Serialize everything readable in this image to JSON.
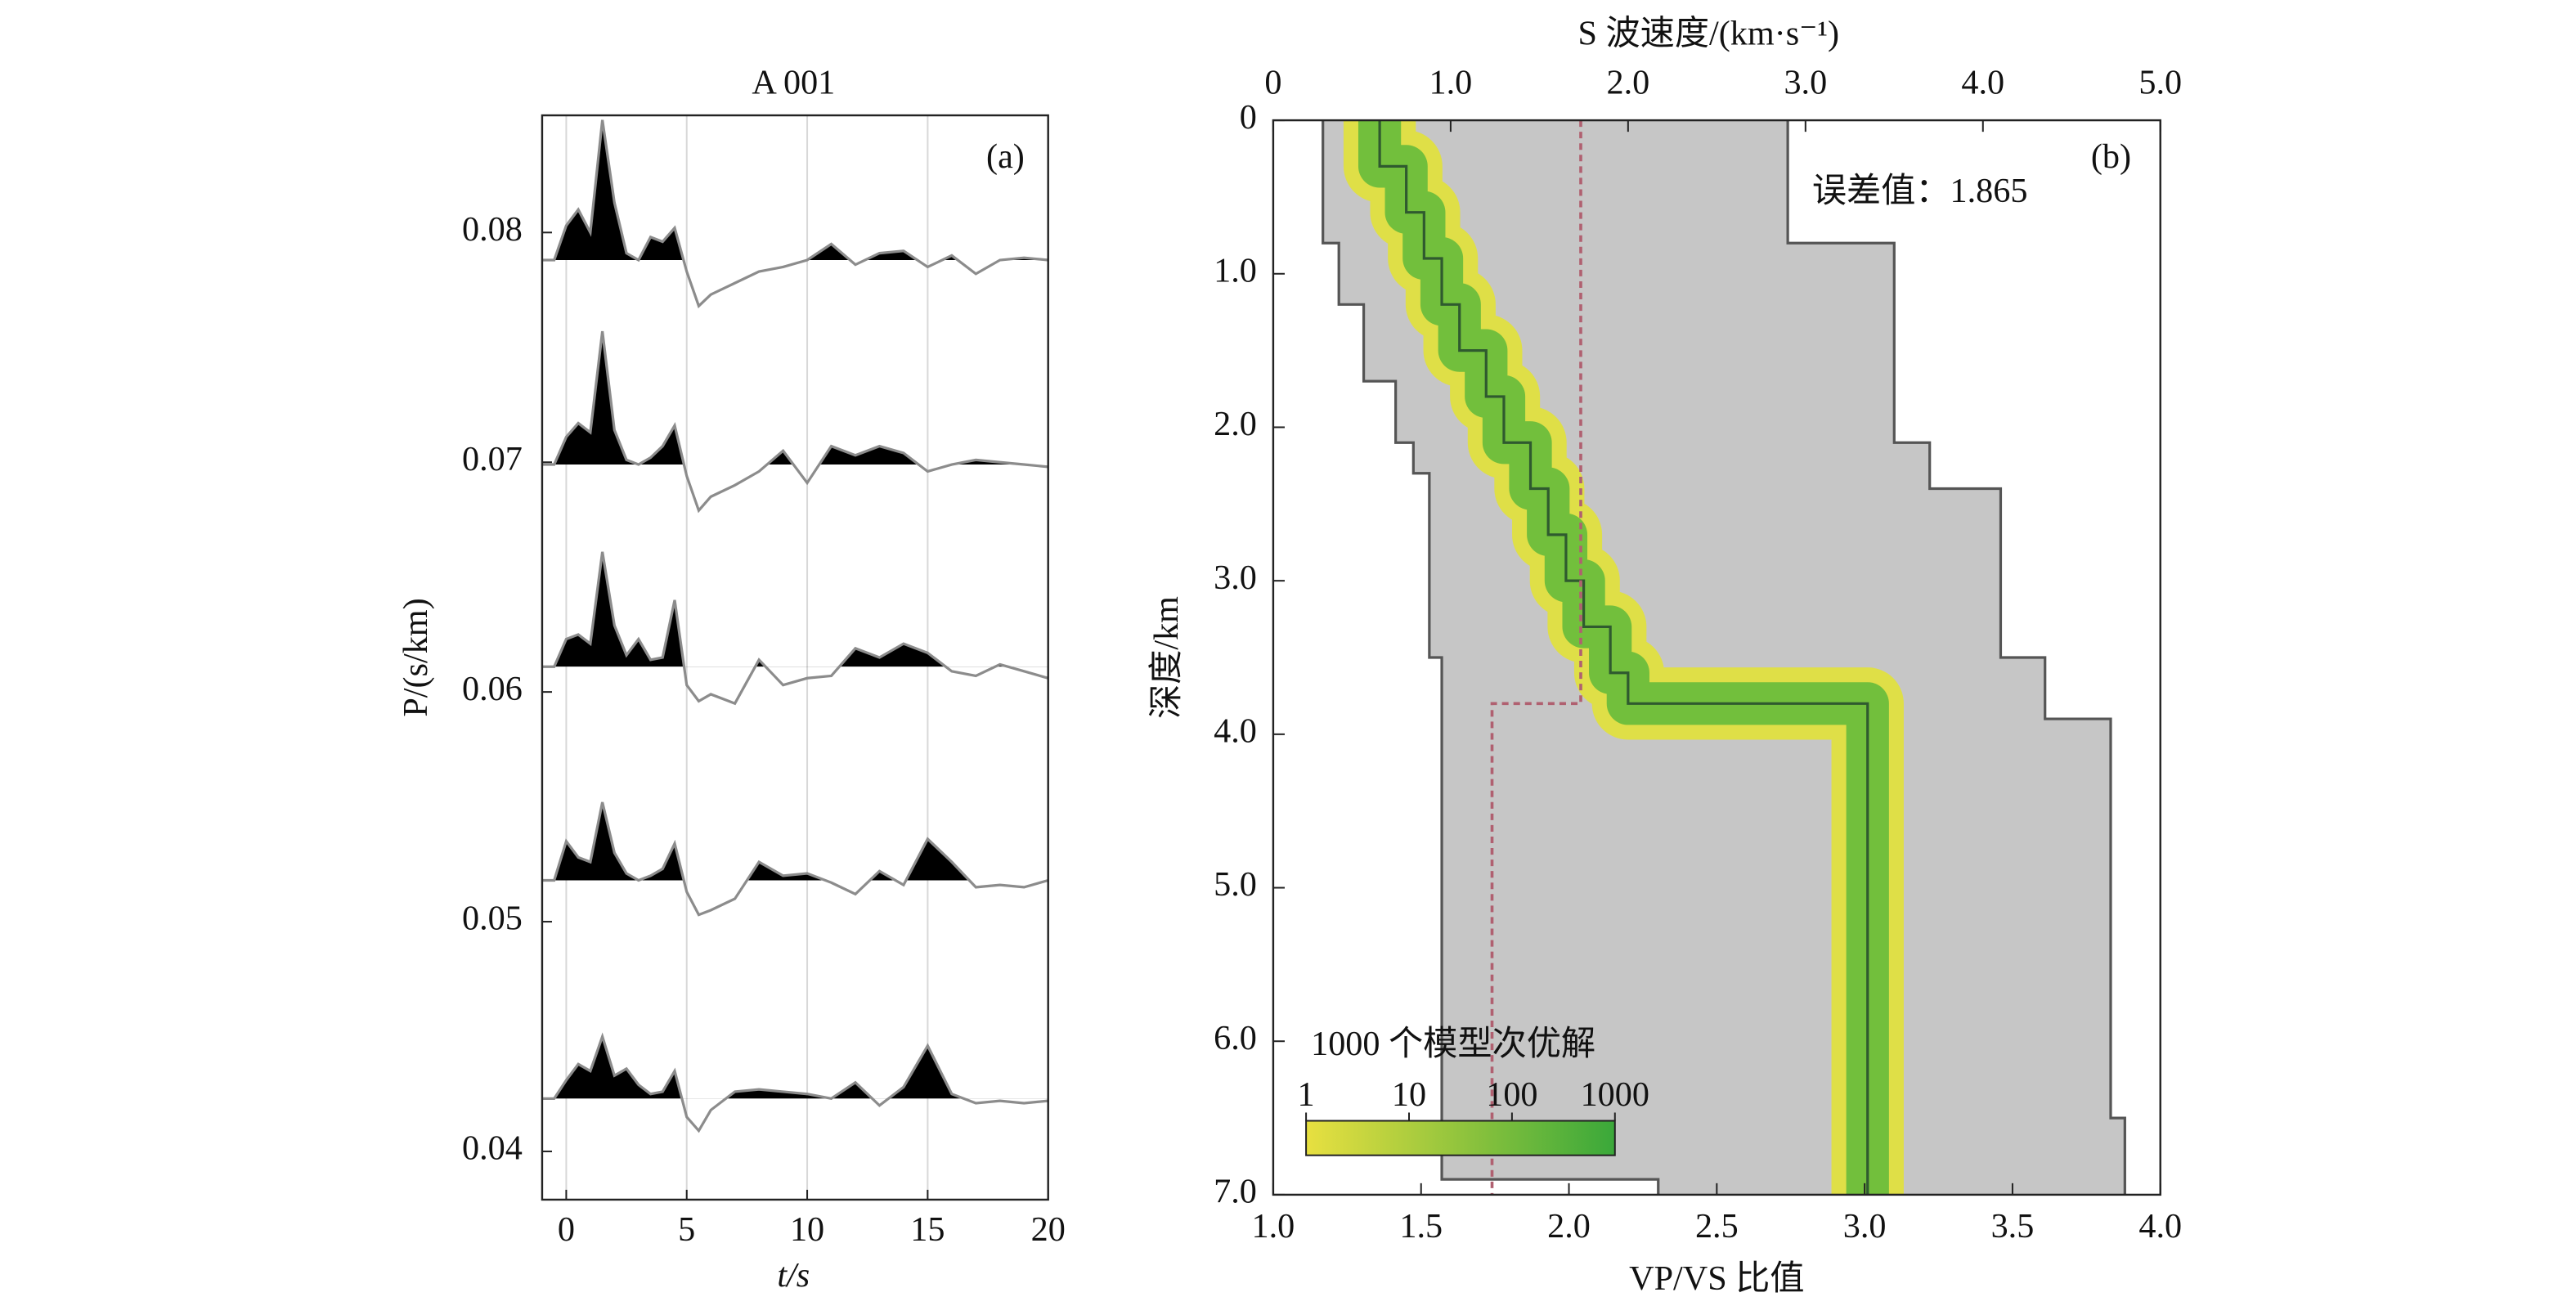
{
  "chart_data": [
    {
      "type": "wiggle",
      "title": "A 001",
      "annotation": "(a)",
      "xlabel": "t/s",
      "ylabel": "P/(s/km)",
      "xlim": [
        -1,
        20
      ],
      "ylim": [
        0.0379,
        0.0851
      ],
      "xticks": [
        0,
        5,
        10,
        15,
        20
      ],
      "yticks": [
        0.04,
        0.05,
        0.06,
        0.07,
        0.08
      ],
      "grid": true,
      "fill_color": "#000000",
      "color": "#8c8c8c",
      "x": [
        -1,
        -0.5,
        0,
        0.5,
        1,
        1.5,
        2,
        2.5,
        3,
        3.5,
        4,
        4.5,
        5,
        5.5,
        6,
        7,
        8,
        9,
        10,
        11,
        12,
        13,
        14,
        15,
        16,
        17,
        18,
        19,
        20
      ],
      "series": [
        {
          "values": [
            0.0788,
            0.0788,
            0.0803,
            0.081,
            0.08,
            0.0849,
            0.0813,
            0.0791,
            0.0788,
            0.0798,
            0.0796,
            0.0802,
            0.0783,
            0.0768,
            0.0773,
            0.0778,
            0.0783,
            0.0785,
            0.0788,
            0.0795,
            0.0786,
            0.0791,
            0.0792,
            0.0785,
            0.079,
            0.0782,
            0.0788,
            0.0789,
            0.0788
          ]
        },
        {
          "values": [
            0.0699,
            0.0699,
            0.0711,
            0.0717,
            0.0713,
            0.0757,
            0.0714,
            0.0701,
            0.0699,
            0.0702,
            0.0707,
            0.0716,
            0.0694,
            0.0679,
            0.0685,
            0.069,
            0.0696,
            0.0705,
            0.0691,
            0.0707,
            0.0703,
            0.0707,
            0.0704,
            0.0696,
            0.0699,
            0.0701,
            0.07,
            0.0699,
            0.0698
          ]
        },
        {
          "values": [
            0.0611,
            0.0611,
            0.0623,
            0.0625,
            0.0621,
            0.0661,
            0.0629,
            0.0616,
            0.0623,
            0.0614,
            0.0615,
            0.064,
            0.0603,
            0.0596,
            0.0599,
            0.0595,
            0.0614,
            0.0603,
            0.0606,
            0.0607,
            0.0619,
            0.0615,
            0.0621,
            0.0617,
            0.0609,
            0.0607,
            0.0612,
            0.0609,
            0.0606
          ]
        },
        {
          "values": [
            0.0518,
            0.0518,
            0.0535,
            0.0528,
            0.0526,
            0.0552,
            0.053,
            0.0521,
            0.0518,
            0.052,
            0.0523,
            0.0534,
            0.0513,
            0.0503,
            0.0505,
            0.051,
            0.0526,
            0.052,
            0.0521,
            0.0517,
            0.0512,
            0.0522,
            0.0516,
            0.0536,
            0.0526,
            0.0515,
            0.0516,
            0.0515,
            0.0518
          ]
        },
        {
          "values": [
            0.0423,
            0.0423,
            0.0431,
            0.0438,
            0.0435,
            0.045,
            0.0433,
            0.0436,
            0.0429,
            0.0425,
            0.0426,
            0.0435,
            0.0415,
            0.0409,
            0.0418,
            0.0426,
            0.0427,
            0.0426,
            0.0425,
            0.0423,
            0.043,
            0.042,
            0.0428,
            0.0446,
            0.0425,
            0.0421,
            0.0422,
            0.0421,
            0.0422
          ]
        }
      ]
    },
    {
      "type": "step",
      "annotation": "(b)",
      "error_label": "误差值：1.865",
      "xlabel": "VP/VS 比值",
      "x2label": "S 波速度/(km·s⁻¹)",
      "ylabel": "深度/km",
      "xlim": [
        1,
        4
      ],
      "x2lim": [
        0,
        5
      ],
      "ylim": [
        0,
        7
      ],
      "y_inverted": true,
      "xticks": [
        {
          "value": 1,
          "label": "1.0"
        },
        1.5,
        {
          "value": 2,
          "label": "2.0"
        },
        2.5,
        {
          "value": 3,
          "label": "3.0"
        },
        3.5,
        {
          "value": 4,
          "label": "4.0"
        }
      ],
      "x2ticks": [
        0,
        {
          "value": 1,
          "label": "1.0"
        },
        {
          "value": 2,
          "label": "2.0"
        },
        {
          "value": 3,
          "label": "3.0"
        },
        {
          "value": 4,
          "label": "4.0"
        },
        {
          "value": 5,
          "label": "5.0"
        }
      ],
      "yticks": [
        0,
        {
          "value": 1,
          "label": "1.0"
        },
        {
          "value": 2,
          "label": "2.0"
        },
        {
          "value": 3,
          "label": "3.0"
        },
        {
          "value": 4,
          "label": "4.0"
        },
        {
          "value": 5,
          "label": "5.0"
        },
        {
          "value": 6,
          "label": "6.0"
        },
        {
          "value": 7,
          "label": "7.0"
        }
      ],
      "cloud_color": "#c6c6c6",
      "series": [
        {
          "role": "lower",
          "axis": "x2",
          "color": "#555555",
          "depth": [
            0,
            0.8,
            1.2,
            1.7,
            2.1,
            2.3,
            3.5,
            6.9
          ],
          "values": [
            0.28,
            0.37,
            0.51,
            0.69,
            0.79,
            0.88,
            0.95,
            2.17
          ]
        },
        {
          "role": "upper",
          "axis": "x2",
          "color": "#555555",
          "depth": [
            0,
            0.8,
            2.1,
            2.4,
            3.5,
            3.9,
            6.5
          ],
          "values": [
            2.9,
            3.5,
            3.7,
            4.1,
            4.35,
            4.72,
            4.8
          ]
        },
        {
          "role": "best",
          "axis": "x2",
          "color": "#2f5a2f",
          "band_colors": [
            "#e0e040",
            "#6cbd3c"
          ],
          "depth": [
            0,
            0.3,
            0.6,
            0.9,
            1.2,
            1.5,
            1.8,
            2.1,
            2.4,
            2.7,
            3.0,
            3.3,
            3.6,
            3.8
          ],
          "values": [
            0.6,
            0.75,
            0.85,
            0.95,
            1.05,
            1.2,
            1.3,
            1.45,
            1.55,
            1.65,
            1.75,
            1.9,
            2.0,
            3.35
          ]
        },
        {
          "role": "ratio",
          "axis": "x",
          "color": "#b06070",
          "dash": true,
          "depth": [
            0,
            3.8
          ],
          "values": [
            2.04,
            1.74
          ]
        }
      ],
      "colorbar": {
        "title": "1000 个模型次优解",
        "log": true,
        "lim": [
          1,
          1000
        ],
        "ticks": [
          1,
          10,
          100,
          1000
        ],
        "colors": [
          "#e8e040",
          "#3aa83a"
        ]
      }
    }
  ]
}
